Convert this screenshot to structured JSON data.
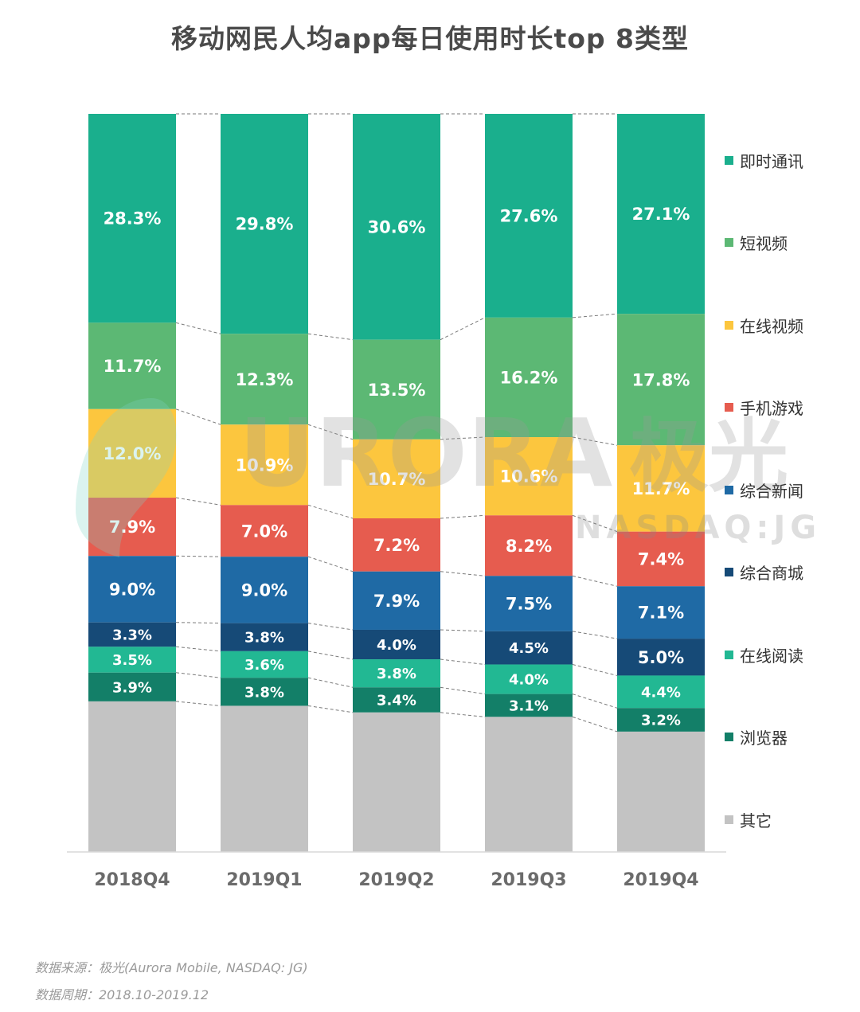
{
  "chart_data": {
    "type": "bar",
    "stacked": true,
    "title": "移动网民人均app每日使用时长top 8类型",
    "categories": [
      "2018Q4",
      "2019Q1",
      "2019Q2",
      "2019Q3",
      "2019Q4"
    ],
    "unit": "%",
    "series": [
      {
        "name": "即时通讯",
        "color": "#1aaf8d",
        "values": [
          28.3,
          29.8,
          30.6,
          27.6,
          27.1
        ]
      },
      {
        "name": "短视频",
        "color": "#5cb874",
        "values": [
          11.7,
          12.3,
          13.5,
          16.2,
          17.8
        ]
      },
      {
        "name": "在线视频",
        "color": "#fcc63e",
        "values": [
          12.0,
          10.9,
          10.7,
          10.6,
          11.7
        ]
      },
      {
        "name": "手机游戏",
        "color": "#e65c4f",
        "values": [
          7.9,
          7.0,
          7.2,
          8.2,
          7.4
        ]
      },
      {
        "name": "综合新闻",
        "color": "#1f6aa5",
        "values": [
          9.0,
          9.0,
          7.9,
          7.5,
          7.1
        ]
      },
      {
        "name": "综合商城",
        "color": "#164a77",
        "values": [
          3.3,
          3.8,
          4.0,
          4.5,
          5.0
        ]
      },
      {
        "name": "在线阅读",
        "color": "#22b893",
        "values": [
          3.5,
          3.6,
          3.8,
          4.0,
          4.4
        ]
      },
      {
        "name": "浏览器",
        "color": "#137f68",
        "values": [
          3.9,
          3.8,
          3.4,
          3.1,
          3.2
        ]
      },
      {
        "name": "其它",
        "color": "#c3c3c3",
        "values": [
          20.4,
          19.8,
          18.9,
          18.3,
          16.3
        ]
      }
    ],
    "data_labels": [
      [
        "28.3%",
        "29.8%",
        "30.6%",
        "27.6%",
        "27.1%"
      ],
      [
        "11.7%",
        "12.3%",
        "13.5%",
        "16.2%",
        "17.8%"
      ],
      [
        "12.0%",
        "10.9%",
        "10.7%",
        "10.6%",
        "11.7%"
      ],
      [
        "7.9%",
        "7.0%",
        "7.2%",
        "8.2%",
        "7.4%"
      ],
      [
        "9.0%",
        "9.0%",
        "7.9%",
        "7.5%",
        "7.1%"
      ],
      [
        "3.3%",
        "3.8%",
        "4.0%",
        "4.5%",
        "5.0%"
      ],
      [
        "3.5%",
        "3.6%",
        "3.8%",
        "4.0%",
        "4.4%"
      ],
      [
        "3.9%",
        "3.8%",
        "3.4%",
        "3.1%",
        "3.2%"
      ]
    ],
    "ylim": [
      0,
      100
    ],
    "grid": false,
    "legend_position": "right",
    "connector_lines": "dashed"
  },
  "watermark": {
    "brand": "URORA",
    "brand_cn": "极光",
    "exchange": "NASDAQ:JG"
  },
  "footer": {
    "source": "数据来源：极光(Aurora Mobile, NASDAQ: JG)",
    "period": "数据周期：2018.10-2019.12"
  }
}
